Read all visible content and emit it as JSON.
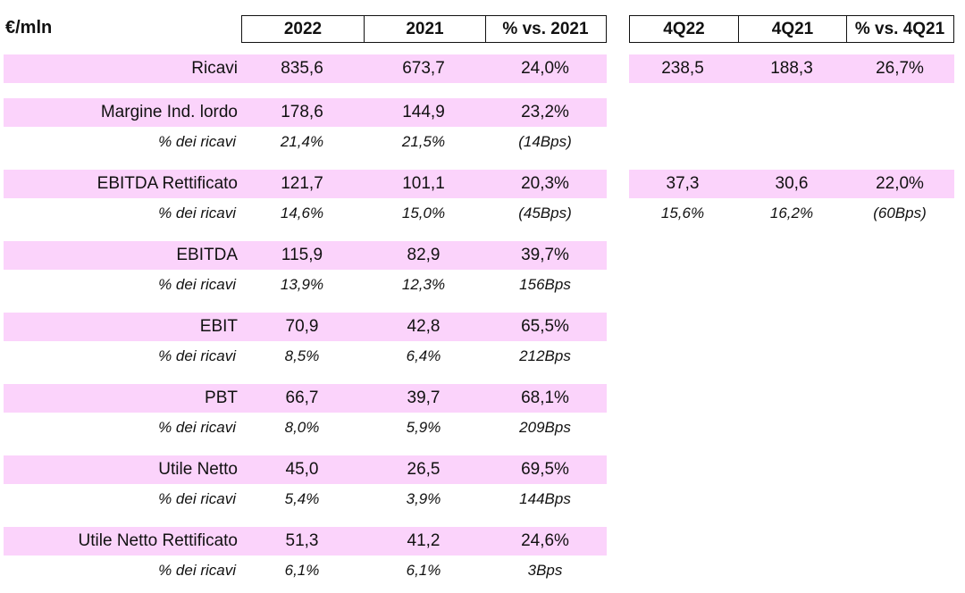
{
  "unit_label": "€/mln",
  "headers_annual": [
    "2022",
    "2021",
    "% vs. 2021"
  ],
  "headers_quarter": [
    "4Q22",
    "4Q21",
    "% vs. 4Q21"
  ],
  "rows": [
    {
      "label": "Ricavi",
      "values": [
        "835,6",
        "673,7",
        "24,0%"
      ],
      "q_values": [
        "238,5",
        "188,3",
        "26,7%"
      ]
    },
    {
      "label": "Margine Ind. lordo",
      "values": [
        "178,6",
        "144,9",
        "23,2%"
      ],
      "sub_label": "% dei ricavi",
      "sub_values": [
        "21,4%",
        "21,5%",
        "(14Bps)"
      ]
    },
    {
      "label": "EBITDA Rettificato",
      "values": [
        "121,7",
        "101,1",
        "20,3%"
      ],
      "q_values": [
        "37,3",
        "30,6",
        "22,0%"
      ],
      "sub_label": "% dei ricavi",
      "sub_values": [
        "14,6%",
        "15,0%",
        "(45Bps)"
      ],
      "q_sub_values": [
        "15,6%",
        "16,2%",
        "(60Bps)"
      ]
    },
    {
      "label": "EBITDA",
      "values": [
        "115,9",
        "82,9",
        "39,7%"
      ],
      "sub_label": "% dei ricavi",
      "sub_values": [
        "13,9%",
        "12,3%",
        "156Bps"
      ]
    },
    {
      "label": "EBIT",
      "values": [
        "70,9",
        "42,8",
        "65,5%"
      ],
      "sub_label": "% dei ricavi",
      "sub_values": [
        "8,5%",
        "6,4%",
        "212Bps"
      ]
    },
    {
      "label": "PBT",
      "values": [
        "66,7",
        "39,7",
        "68,1%"
      ],
      "sub_label": "% dei ricavi",
      "sub_values": [
        "8,0%",
        "5,9%",
        "209Bps"
      ]
    },
    {
      "label": "Utile Netto",
      "values": [
        "45,0",
        "26,5",
        "69,5%"
      ],
      "sub_label": "% dei ricavi",
      "sub_values": [
        "5,4%",
        "3,9%",
        "144Bps"
      ]
    },
    {
      "label": "Utile Netto Rettificato",
      "values": [
        "51,3",
        "41,2",
        "24,6%"
      ],
      "sub_label": "% dei ricavi",
      "sub_values": [
        "6,1%",
        "6,1%",
        "3Bps"
      ]
    }
  ]
}
